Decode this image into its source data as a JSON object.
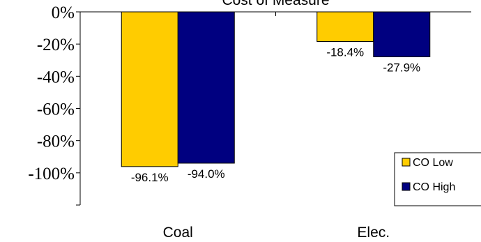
{
  "chart_data": {
    "type": "bar",
    "title": "Cost of Measure",
    "categories": [
      "Coal",
      "Elec."
    ],
    "series": [
      {
        "name": "CO Low",
        "values": [
          -96.1,
          -18.4
        ],
        "color": "#FFCC00",
        "labels": [
          "-96.1%",
          "-18.4%"
        ]
      },
      {
        "name": "CO High",
        "values": [
          -94.0,
          -27.9
        ],
        "color": "#000080",
        "labels": [
          "-94.0%",
          "-27.9%"
        ]
      }
    ],
    "ylim": [
      -120,
      0
    ],
    "yticks": [
      0,
      -20,
      -40,
      -60,
      -80,
      -100
    ],
    "ytick_labels": [
      "0%",
      "-20%",
      "-40%",
      "-60%",
      "-80%",
      "-100%"
    ],
    "xlabel": "",
    "ylabel": "",
    "grid": false,
    "legend_position": "bottom-right"
  }
}
